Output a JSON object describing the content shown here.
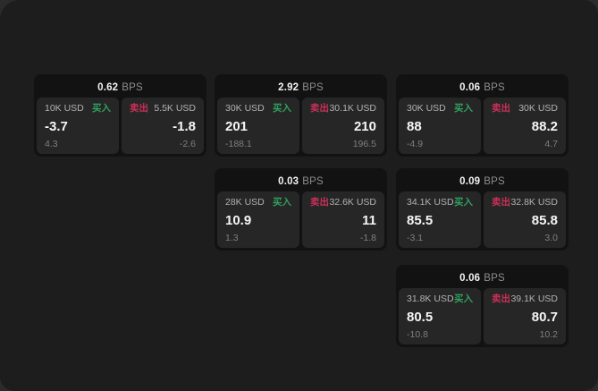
{
  "labels": {
    "bps_unit": "BPS",
    "buy": "买入",
    "sell": "卖出"
  },
  "colors": {
    "buy": "#30a05f",
    "sell": "#c93059",
    "surface": "#1d1d1d",
    "card_bg": "#121212",
    "panel_bg": "#262626"
  },
  "cards": [
    {
      "bps": "0.62",
      "buy": {
        "size": "10K USD",
        "value": "-3.7",
        "delta": "4.3"
      },
      "sell": {
        "size": "5.5K USD",
        "value": "-1.8",
        "delta": "-2.6"
      }
    },
    {
      "bps": "2.92",
      "buy": {
        "size": "30K USD",
        "value": "201",
        "delta": "-188.1"
      },
      "sell": {
        "size": "30.1K USD",
        "value": "210",
        "delta": "196.5"
      }
    },
    {
      "bps": "0.06",
      "buy": {
        "size": "30K USD",
        "value": "88",
        "delta": "-4.9"
      },
      "sell": {
        "size": "30K USD",
        "value": "88.2",
        "delta": "4.7"
      }
    },
    {
      "bps": "0.03",
      "buy": {
        "size": "28K USD",
        "value": "10.9",
        "delta": "1.3"
      },
      "sell": {
        "size": "32.6K USD",
        "value": "11",
        "delta": "-1.8"
      }
    },
    {
      "bps": "0.09",
      "buy": {
        "size": "34.1K USD",
        "value": "85.5",
        "delta": "-3.1"
      },
      "sell": {
        "size": "32.8K USD",
        "value": "85.8",
        "delta": "3.0"
      }
    },
    {
      "bps": "0.06",
      "buy": {
        "size": "31.8K USD",
        "value": "80.5",
        "delta": "-10.8"
      },
      "sell": {
        "size": "39.1K USD",
        "value": "80.7",
        "delta": "10.2"
      }
    }
  ]
}
